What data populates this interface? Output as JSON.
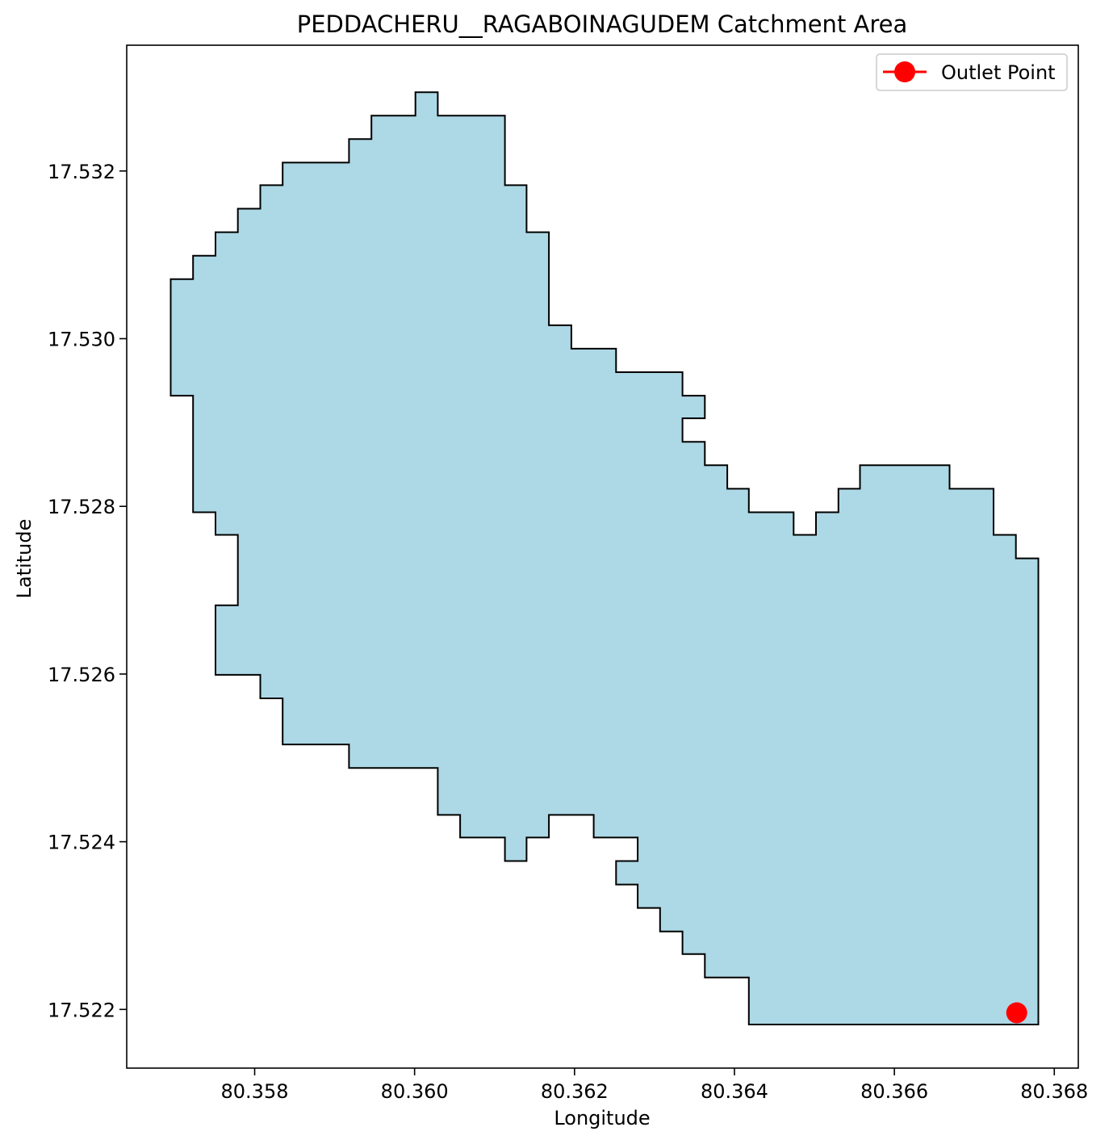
{
  "title": "PEDDACHERU__RAGABOINAGUDEM Catchment Area",
  "xlabel": "Longitude",
  "ylabel": "Latitude",
  "legend": {
    "label": "Outlet Point",
    "placement": "top-right"
  },
  "colors": {
    "catchment_fill": "#add8e6",
    "catchment_edge": "#000000",
    "outlet": "#ff0000",
    "background": "#ffffff"
  },
  "x_ticks": [
    "80.358",
    "80.360",
    "80.362",
    "80.364",
    "80.366",
    "80.368"
  ],
  "y_ticks": [
    "17.532",
    "17.530",
    "17.528",
    "17.526",
    "17.524",
    "17.522"
  ],
  "chart_data": {
    "type": "map",
    "xlim": [
      80.3564,
      80.3683
    ],
    "ylim": [
      17.5213,
      17.5335
    ],
    "x_tick_values": [
      80.358,
      80.36,
      80.362,
      80.364,
      80.366,
      80.368
    ],
    "y_tick_values": [
      17.532,
      17.53,
      17.528,
      17.526,
      17.524,
      17.522
    ],
    "catchment_boundary": [
      [
        80.35695,
        17.53071
      ],
      [
        80.35723,
        17.53071
      ],
      [
        80.35723,
        17.53099
      ],
      [
        80.35751,
        17.53099
      ],
      [
        80.35751,
        17.53127
      ],
      [
        80.35779,
        17.53127
      ],
      [
        80.35779,
        17.53155
      ],
      [
        80.35807,
        17.53155
      ],
      [
        80.35807,
        17.53183
      ],
      [
        80.35835,
        17.53183
      ],
      [
        80.35835,
        17.5321
      ],
      [
        80.35918,
        17.5321
      ],
      [
        80.35918,
        17.53238
      ],
      [
        80.35946,
        17.53238
      ],
      [
        80.35946,
        17.53266
      ],
      [
        80.36001,
        17.53266
      ],
      [
        80.36001,
        17.53294
      ],
      [
        80.36029,
        17.53294
      ],
      [
        80.36029,
        17.53266
      ],
      [
        80.36113,
        17.53266
      ],
      [
        80.36113,
        17.53183
      ],
      [
        80.3614,
        17.53183
      ],
      [
        80.3614,
        17.53127
      ],
      [
        80.36168,
        17.53127
      ],
      [
        80.36168,
        17.53016
      ],
      [
        80.36196,
        17.53016
      ],
      [
        80.36196,
        17.52988
      ],
      [
        80.36252,
        17.52988
      ],
      [
        80.36252,
        17.5296
      ],
      [
        80.36335,
        17.5296
      ],
      [
        80.36335,
        17.52932
      ],
      [
        80.36363,
        17.52932
      ],
      [
        80.36363,
        17.52905
      ],
      [
        80.36335,
        17.52905
      ],
      [
        80.36335,
        17.52877
      ],
      [
        80.36363,
        17.52877
      ],
      [
        80.36363,
        17.52849
      ],
      [
        80.36391,
        17.52849
      ],
      [
        80.36391,
        17.52821
      ],
      [
        80.36418,
        17.52821
      ],
      [
        80.36418,
        17.52793
      ],
      [
        80.36474,
        17.52793
      ],
      [
        80.36474,
        17.52766
      ],
      [
        80.36502,
        17.52766
      ],
      [
        80.36502,
        17.52793
      ],
      [
        80.3653,
        17.52793
      ],
      [
        80.3653,
        17.52821
      ],
      [
        80.36557,
        17.52821
      ],
      [
        80.36557,
        17.52849
      ],
      [
        80.36669,
        17.52849
      ],
      [
        80.36669,
        17.52821
      ],
      [
        80.36724,
        17.52821
      ],
      [
        80.36724,
        17.52766
      ],
      [
        80.36752,
        17.52766
      ],
      [
        80.36752,
        17.52738
      ],
      [
        80.3678,
        17.52738
      ],
      [
        80.3678,
        17.52182
      ],
      [
        80.36418,
        17.52182
      ],
      [
        80.36418,
        17.52238
      ],
      [
        80.36363,
        17.52238
      ],
      [
        80.36363,
        17.52266
      ],
      [
        80.36335,
        17.52266
      ],
      [
        80.36335,
        17.52293
      ],
      [
        80.36307,
        17.52293
      ],
      [
        80.36307,
        17.52321
      ],
      [
        80.36279,
        17.52321
      ],
      [
        80.36279,
        17.52349
      ],
      [
        80.36252,
        17.52349
      ],
      [
        80.36252,
        17.52377
      ],
      [
        80.36279,
        17.52377
      ],
      [
        80.36279,
        17.52405
      ],
      [
        80.36224,
        17.52405
      ],
      [
        80.36224,
        17.52432
      ],
      [
        80.36168,
        17.52432
      ],
      [
        80.36168,
        17.52405
      ],
      [
        80.3614,
        17.52405
      ],
      [
        80.3614,
        17.52377
      ],
      [
        80.36113,
        17.52377
      ],
      [
        80.36113,
        17.52405
      ],
      [
        80.36057,
        17.52405
      ],
      [
        80.36057,
        17.52432
      ],
      [
        80.36029,
        17.52432
      ],
      [
        80.36029,
        17.52488
      ],
      [
        80.35918,
        17.52488
      ],
      [
        80.35918,
        17.52516
      ],
      [
        80.35835,
        17.52516
      ],
      [
        80.35835,
        17.52571
      ],
      [
        80.35807,
        17.52571
      ],
      [
        80.35807,
        17.52599
      ],
      [
        80.35751,
        17.52599
      ],
      [
        80.35751,
        17.52682
      ],
      [
        80.35779,
        17.52682
      ],
      [
        80.35779,
        17.52766
      ],
      [
        80.35751,
        17.52766
      ],
      [
        80.35751,
        17.52793
      ],
      [
        80.35723,
        17.52793
      ],
      [
        80.35723,
        17.52932
      ],
      [
        80.35695,
        17.52932
      ],
      [
        80.35695,
        17.53071
      ]
    ],
    "outlet_point": [
      80.36753,
      17.52196
    ],
    "grid": false
  }
}
